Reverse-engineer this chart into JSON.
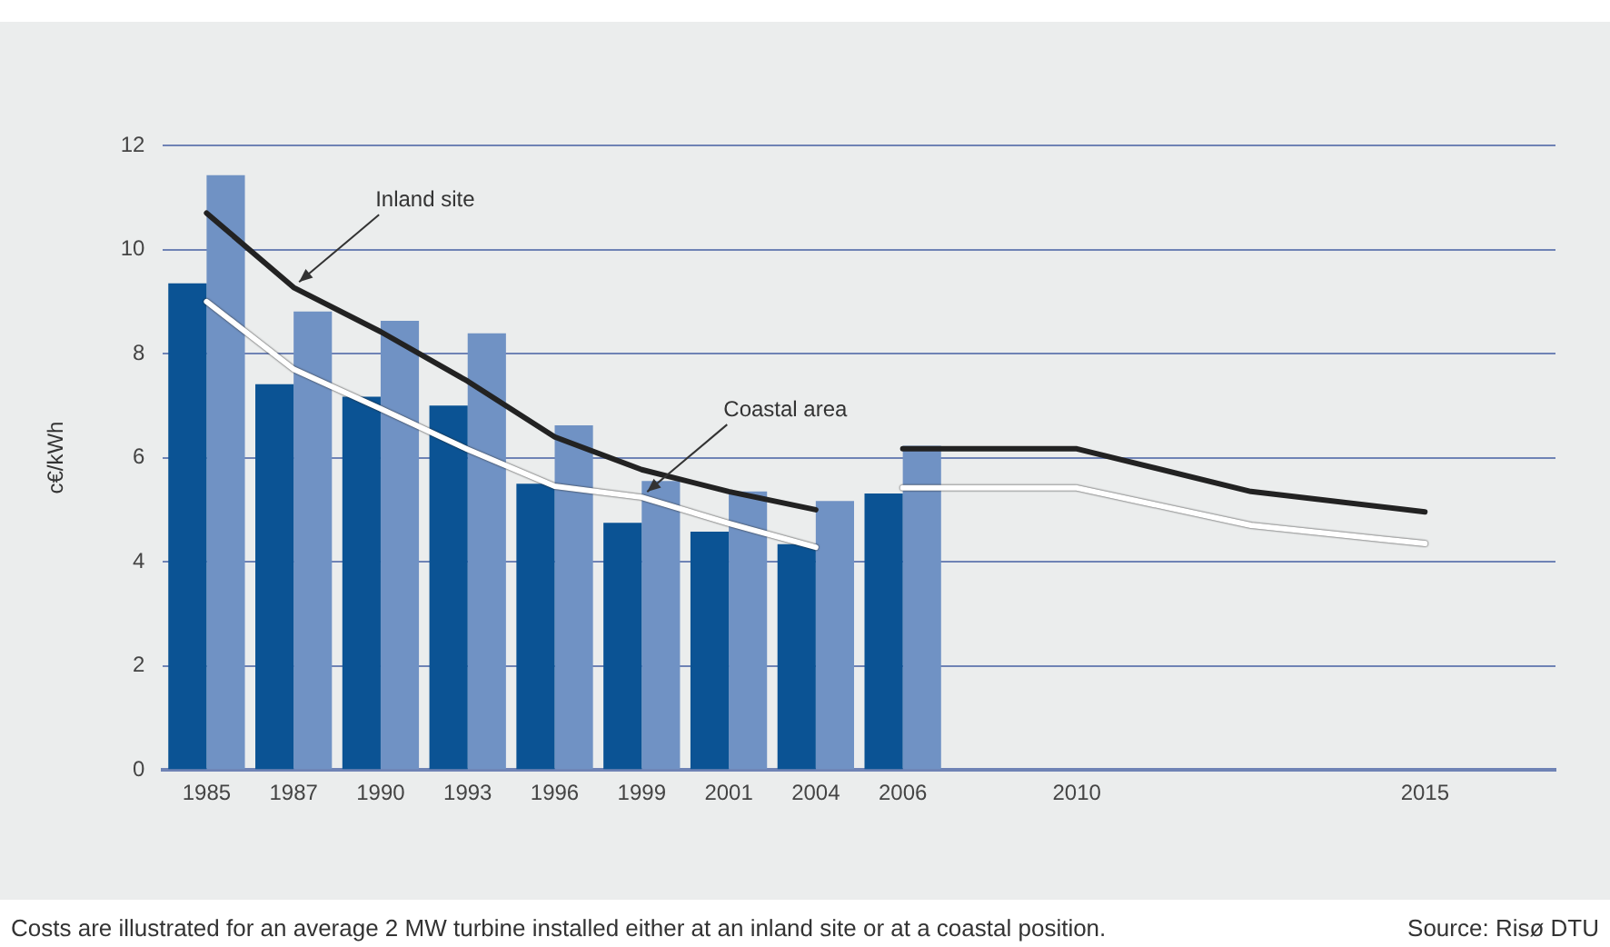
{
  "chart_data": {
    "type": "bar",
    "ylabel": "c€/kWh",
    "categories": [
      "1985",
      "1987",
      "1990",
      "1993",
      "1996",
      "1999",
      "2001",
      "2004",
      "2006",
      null,
      "2010",
      null,
      null,
      null,
      "2015",
      null
    ],
    "series": [
      {
        "color": "#0b5394",
        "values": [
          9.35,
          7.41,
          7.17,
          7.0,
          5.5,
          4.75,
          4.58,
          4.34,
          5.31,
          null,
          null,
          null,
          null,
          null,
          null,
          null
        ]
      },
      {
        "color": "#7092c4",
        "values": [
          11.43,
          8.81,
          8.63,
          8.39,
          6.62,
          5.55,
          5.35,
          5.17,
          6.23,
          null,
          null,
          null,
          null,
          null,
          null,
          null
        ]
      },
      {
        "type": "line",
        "color": "#222222",
        "values": [
          10.7,
          9.27,
          8.42,
          7.47,
          6.4,
          5.77,
          5.35,
          5.0,
          null,
          null,
          null,
          null,
          null,
          null,
          null,
          null
        ]
      },
      {
        "type": "line",
        "color": "#ffffff",
        "values": [
          9.0,
          7.7,
          6.94,
          6.16,
          5.45,
          5.24,
          4.74,
          4.28,
          null,
          null,
          null,
          null,
          null,
          null,
          null,
          null
        ]
      },
      {
        "type": "line",
        "color": "#222222",
        "values": [
          null,
          null,
          null,
          null,
          null,
          null,
          null,
          null,
          6.17,
          null,
          6.17,
          null,
          5.35,
          null,
          4.96,
          null
        ]
      },
      {
        "type": "line",
        "color": "#ffffff",
        "values": [
          null,
          null,
          null,
          null,
          null,
          null,
          null,
          null,
          5.42,
          null,
          5.42,
          null,
          4.7,
          null,
          4.35,
          null
        ]
      }
    ],
    "ylim": [
      0,
      12
    ],
    "yticks": [
      0,
      2,
      4,
      6,
      8,
      10,
      12
    ],
    "grid": "y",
    "legend": false,
    "marker": "none",
    "line_style": "solid",
    "annotations": [
      {
        "text": "Inland site",
        "x": "1987",
        "y": 9.27
      },
      {
        "text": "Coastal area",
        "x": "1999",
        "y": 5.24
      },
      "Costs are illustrated for an average 2 MW turbine installed either at an inland site or at a coastal position.",
      "Source: Risø DTU"
    ]
  }
}
